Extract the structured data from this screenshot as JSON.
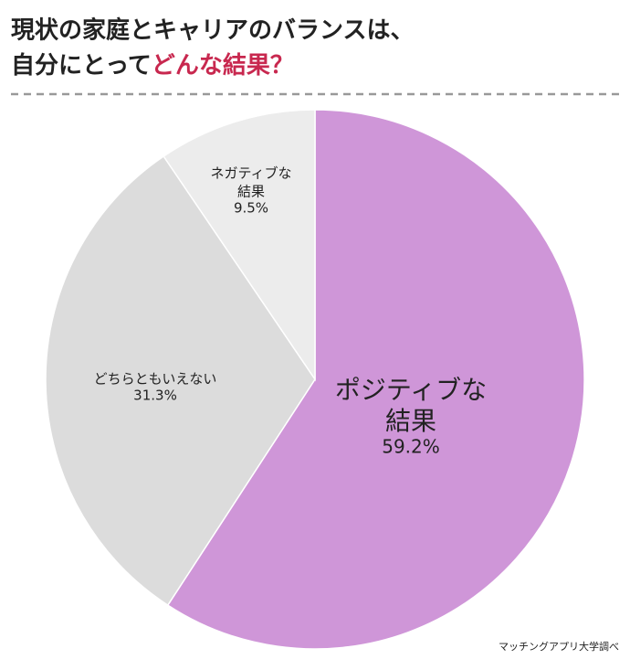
{
  "chart_data": {
    "type": "pie",
    "title_parts": [
      "現状の家庭とキャリアのバランスは、",
      "自分にとって",
      "どんな結果？"
    ],
    "categories": [
      [
        "ポジティブな",
        "結果"
      ],
      [
        "どちらともいえない"
      ],
      [
        "ネガティブな",
        "結果"
      ]
    ],
    "values": [
      59.2,
      31.3,
      9.5
    ],
    "value_labels": [
      "59.2%",
      "31.3%",
      "9.5%"
    ],
    "colors": [
      "#cf96d8",
      "#dcdcdc",
      "#ececec"
    ],
    "highlight_color": "#c8284f",
    "source": "マッチングアプリ大学調べ"
  }
}
